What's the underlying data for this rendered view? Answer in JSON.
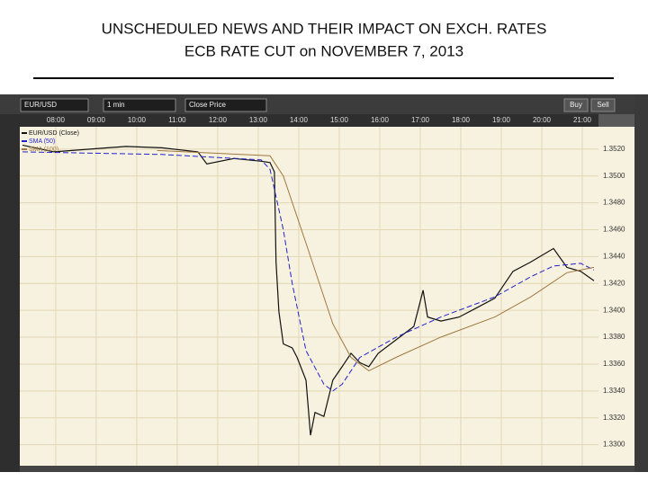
{
  "title_lines": [
    "UNSCHEDULED NEWS AND THEIR IMPACT ON EXCH. RATES",
    "ECB RATE CUT on NOVEMBER 7, 2013"
  ],
  "toolbar": {
    "symbol": "EUR/USD",
    "interval": "1 min",
    "price_type": "Close Price",
    "buy": "Buy",
    "sell": "Sell"
  },
  "chart_data": {
    "type": "line",
    "xlim": [
      7.18,
      21.4
    ],
    "xticks": [
      {
        "value": 8,
        "label": "08:00"
      },
      {
        "value": 9,
        "label": "09:00"
      },
      {
        "value": 10,
        "label": "10:00"
      },
      {
        "value": 11,
        "label": "11:00"
      },
      {
        "value": 12,
        "label": "12:00"
      },
      {
        "value": 13,
        "label": "13:00"
      },
      {
        "value": 14,
        "label": "14:00"
      },
      {
        "value": 15,
        "label": "15:00"
      },
      {
        "value": 16,
        "label": "16:00"
      },
      {
        "value": 17,
        "label": "17:00"
      },
      {
        "value": 18,
        "label": "18:00"
      },
      {
        "value": 19,
        "label": "19:00"
      },
      {
        "value": 20,
        "label": "20:00"
      },
      {
        "value": 21,
        "label": "21:00"
      }
    ],
    "ylim": [
      1.3283,
      1.3544
    ],
    "yticks": [
      {
        "value": 1.352,
        "label": "1.3520"
      },
      {
        "value": 1.35,
        "label": "1.3500"
      },
      {
        "value": 1.348,
        "label": "1.3480"
      },
      {
        "value": 1.346,
        "label": "1.3460"
      },
      {
        "value": 1.344,
        "label": "1.3440"
      },
      {
        "value": 1.342,
        "label": "1.3420"
      },
      {
        "value": 1.34,
        "label": "1.3400"
      },
      {
        "value": 1.338,
        "label": "1.3380"
      },
      {
        "value": 1.336,
        "label": "1.3360"
      },
      {
        "value": 1.334,
        "label": "1.3340"
      },
      {
        "value": 1.332,
        "label": "1.3320"
      },
      {
        "value": 1.33,
        "label": "1.3300"
      }
    ],
    "grid": true,
    "series": [
      {
        "name": "EUR/USD (Close)",
        "color": "#111111",
        "x": [
          7.18,
          7.96,
          8.84,
          9.73,
          10.62,
          11.51,
          11.73,
          12.4,
          13.07,
          13.29,
          13.4,
          13.44,
          13.51,
          13.62,
          13.84,
          13.96,
          14.18,
          14.29,
          14.4,
          14.62,
          14.84,
          15.07,
          15.29,
          15.51,
          15.73,
          15.96,
          16.4,
          16.84,
          16.96,
          17.07,
          17.18,
          17.51,
          17.96,
          18.4,
          18.84,
          19.29,
          19.73,
          20.29,
          20.62,
          20.96,
          21.29
        ],
        "values": [
          1.3523,
          1.3518,
          1.352,
          1.3522,
          1.3521,
          1.3518,
          1.3509,
          1.3513,
          1.3511,
          1.351,
          1.3503,
          1.3436,
          1.3399,
          1.3375,
          1.3372,
          1.3365,
          1.3348,
          1.3307,
          1.3324,
          1.3321,
          1.3348,
          1.3358,
          1.3368,
          1.3361,
          1.3358,
          1.3368,
          1.3378,
          1.3388,
          1.3402,
          1.3415,
          1.3395,
          1.3392,
          1.3395,
          1.3402,
          1.3409,
          1.3429,
          1.3436,
          1.3446,
          1.3432,
          1.3429,
          1.3422
        ]
      },
      {
        "name": "SMA (50)",
        "color": "#2222cc",
        "x": [
          7.18,
          10.62,
          13.07,
          13.29,
          13.62,
          13.84,
          14.18,
          14.62,
          14.84,
          15.07,
          15.51,
          16.4,
          17.51,
          18.84,
          19.73,
          20.29,
          20.96,
          21.29
        ],
        "values": [
          1.3518,
          1.3516,
          1.3512,
          1.3505,
          1.346,
          1.342,
          1.337,
          1.3345,
          1.334,
          1.3345,
          1.3365,
          1.338,
          1.3395,
          1.341,
          1.3425,
          1.3433,
          1.3435,
          1.343
        ]
      },
      {
        "name": "SMA (100)",
        "color": "#a07840",
        "x": [
          10.5,
          13.29,
          13.62,
          14.18,
          14.84,
          15.29,
          15.73,
          16.4,
          17.5,
          18.84,
          19.73,
          20.62,
          21.29
        ],
        "values": [
          1.3519,
          1.3515,
          1.35,
          1.345,
          1.339,
          1.3365,
          1.3355,
          1.3365,
          1.338,
          1.3395,
          1.341,
          1.3428,
          1.3432
        ]
      }
    ]
  }
}
